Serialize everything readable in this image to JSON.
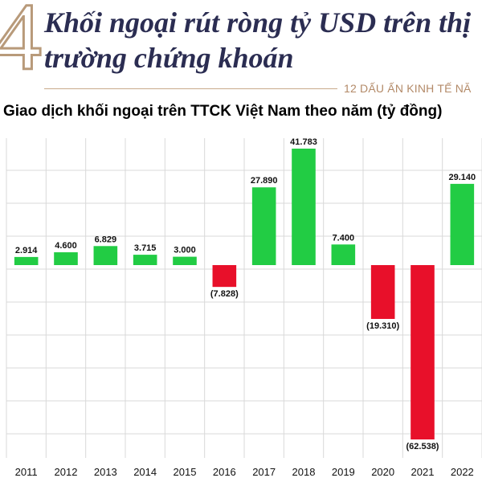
{
  "header": {
    "numeral": "4",
    "headline": "Khối ngoại rút ròng tỷ USD trên thị trường chứng khoán",
    "series_tag": "12 DẤU ẤN KINH TẾ NĂ"
  },
  "colors": {
    "positive": "#22cc44",
    "negative": "#e8102a",
    "headline": "#2b2d52",
    "accent": "#b89a7a",
    "grid": "#d9d9d9"
  },
  "chart_data": {
    "type": "bar",
    "title": "Giao dịch khối ngoại trên TTCK Việt Nam theo năm (tỷ đồng)",
    "categories": [
      "2011",
      "2012",
      "2013",
      "2014",
      "2015",
      "2016",
      "2017",
      "2018",
      "2019",
      "2020",
      "2021",
      "2022"
    ],
    "values": [
      2914,
      4600,
      6829,
      3715,
      3000,
      -7828,
      27890,
      41783,
      7400,
      -19310,
      -62538,
      29140
    ],
    "labels": [
      "2.914",
      "4.600",
      "6.829",
      "3.715",
      "3.000",
      "(7.828)",
      "27.890",
      "41.783",
      "7.400",
      "(19.310)",
      "(62.538)",
      "29.140"
    ],
    "xlabel": "",
    "ylabel": "",
    "ylim": [
      -66000,
      47000
    ],
    "grid": true,
    "legend": "none"
  }
}
